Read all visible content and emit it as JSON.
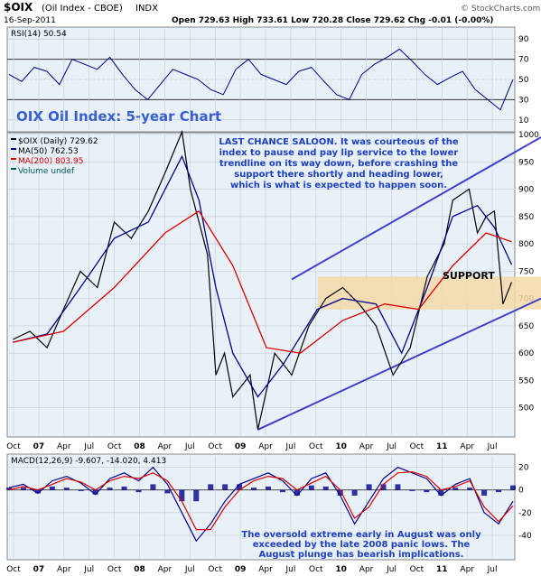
{
  "header": {
    "symbol": "$OIX",
    "name": "(Oil Index - CBOE)",
    "exchange": "INDX",
    "date": "16-Sep-2011",
    "ohlc": "Open 729.63 High 733.61 Low 720.28 Close 729.62 Chg -0.01 (-0.00%)",
    "credit": "© StockCharts.com"
  },
  "colors": {
    "panel_bg": "#e8f0f8",
    "price": "#000000",
    "ma50": "#00008b",
    "ma200": "#dd0000",
    "trendline": "#4040c8",
    "support_band": "#f5d9a8",
    "rsi": "#00008b",
    "macd": "#00008b",
    "signal": "#dd0000",
    "histogram": "#00008b",
    "title_text": "#3a5fd0",
    "annotation_text": "#2040c0"
  },
  "chart_data": [
    {
      "type": "line",
      "panel": "rsi",
      "legend": "RSI(14) 50.54",
      "ylim": [
        0,
        100
      ],
      "yticks": [
        10,
        30,
        50,
        70,
        90
      ],
      "reference_lines": [
        30,
        70
      ],
      "series": [
        {
          "name": "RSI(14)",
          "values": [
            55,
            48,
            62,
            58,
            45,
            70,
            65,
            60,
            72,
            55,
            40,
            30,
            45,
            60,
            55,
            50,
            40,
            35,
            60,
            70,
            55,
            50,
            45,
            58,
            62,
            48,
            35,
            30,
            55,
            65,
            72,
            80,
            68,
            55,
            45,
            52,
            58,
            40,
            30,
            20,
            50
          ]
        }
      ]
    },
    {
      "type": "line",
      "panel": "price",
      "title": "OIX Oil Index: 5-year Chart",
      "legend": [
        "$OIX (Daily) 729.62",
        "MA(50) 762.53",
        "MA(200) 803.95",
        "Volume undef"
      ],
      "ylim": [
        450,
        1000
      ],
      "yticks": [
        500,
        550,
        600,
        650,
        700,
        750,
        800,
        850,
        900,
        950,
        1000
      ],
      "series": [
        {
          "name": "$OIX (Daily)",
          "x": [
            "2006-10",
            "2006-12",
            "2007-02",
            "2007-04",
            "2007-06",
            "2007-08",
            "2007-10",
            "2007-12",
            "2008-02",
            "2008-04",
            "2008-06",
            "2008-07",
            "2008-09",
            "2008-10",
            "2008-11",
            "2008-12",
            "2009-02",
            "2009-03",
            "2009-05",
            "2009-07",
            "2009-09",
            "2009-11",
            "2010-01",
            "2010-03",
            "2010-05",
            "2010-07",
            "2010-09",
            "2010-11",
            "2011-01",
            "2011-02",
            "2011-04",
            "2011-05",
            "2011-06",
            "2011-07",
            "2011-08",
            "2011-09"
          ],
          "values": [
            625,
            640,
            610,
            680,
            750,
            720,
            840,
            810,
            860,
            930,
            1005,
            900,
            780,
            560,
            600,
            520,
            560,
            460,
            600,
            560,
            650,
            700,
            720,
            690,
            650,
            560,
            610,
            740,
            800,
            880,
            900,
            820,
            850,
            860,
            690,
            730
          ]
        },
        {
          "name": "MA(50)",
          "x": [
            "2006-10",
            "2007-02",
            "2007-06",
            "2007-10",
            "2008-02",
            "2008-06",
            "2008-08",
            "2008-10",
            "2008-12",
            "2009-03",
            "2009-06",
            "2009-10",
            "2010-01",
            "2010-05",
            "2010-08",
            "2010-11",
            "2011-02",
            "2011-05",
            "2011-07",
            "2011-09"
          ],
          "values": [
            620,
            635,
            720,
            810,
            840,
            960,
            880,
            720,
            600,
            520,
            580,
            680,
            700,
            690,
            600,
            720,
            850,
            870,
            830,
            762
          ]
        },
        {
          "name": "MA(200)",
          "x": [
            "2006-10",
            "2007-04",
            "2007-10",
            "2008-04",
            "2008-08",
            "2008-12",
            "2009-04",
            "2009-08",
            "2010-01",
            "2010-06",
            "2010-10",
            "2011-02",
            "2011-06",
            "2011-09"
          ],
          "values": [
            620,
            640,
            720,
            820,
            860,
            760,
            610,
            600,
            660,
            690,
            680,
            760,
            820,
            804
          ]
        }
      ],
      "annotations": [
        "LAST CHANCE SALOON. It was courteous of the index to pause and pay lip service to the lower trendline on its way down, before crashing the support there shortly and heading lower, which is what is expected to happen soon.",
        "SUPPORT"
      ],
      "support_band": [
        680,
        740
      ],
      "x_tick_labels": [
        "Oct",
        "07",
        "Apr",
        "Jul",
        "Oct",
        "08",
        "Apr",
        "Jul",
        "Oct",
        "09",
        "Apr",
        "Jul",
        "Oct",
        "10",
        "Apr",
        "Jul",
        "Oct",
        "11",
        "Apr",
        "Jul"
      ]
    },
    {
      "type": "line",
      "panel": "macd",
      "legend": "MACD(12,26,9) -9.607, -14.020, 4.413",
      "ylim": [
        -60,
        30
      ],
      "yticks": [
        -40,
        -20,
        0,
        20
      ],
      "series": [
        {
          "name": "MACD(12,26,9)",
          "values": [
            2,
            5,
            -3,
            8,
            12,
            6,
            -4,
            10,
            15,
            8,
            20,
            5,
            -20,
            -45,
            -30,
            -10,
            5,
            10,
            15,
            8,
            -5,
            10,
            15,
            -5,
            -30,
            -10,
            10,
            20,
            15,
            10,
            -5,
            5,
            10,
            -20,
            -30,
            -10
          ]
        },
        {
          "name": "signal",
          "values": [
            0,
            3,
            0,
            5,
            10,
            7,
            0,
            8,
            12,
            10,
            15,
            8,
            -10,
            -35,
            -35,
            -15,
            0,
            8,
            12,
            10,
            0,
            6,
            12,
            0,
            -25,
            -15,
            5,
            15,
            16,
            12,
            0,
            3,
            8,
            -15,
            -28,
            -14
          ]
        }
      ],
      "annotations": [
        "The oversold extreme early in August was only exceeded by the late 2008 panic lows. The August plunge has bearish implications."
      ]
    }
  ]
}
